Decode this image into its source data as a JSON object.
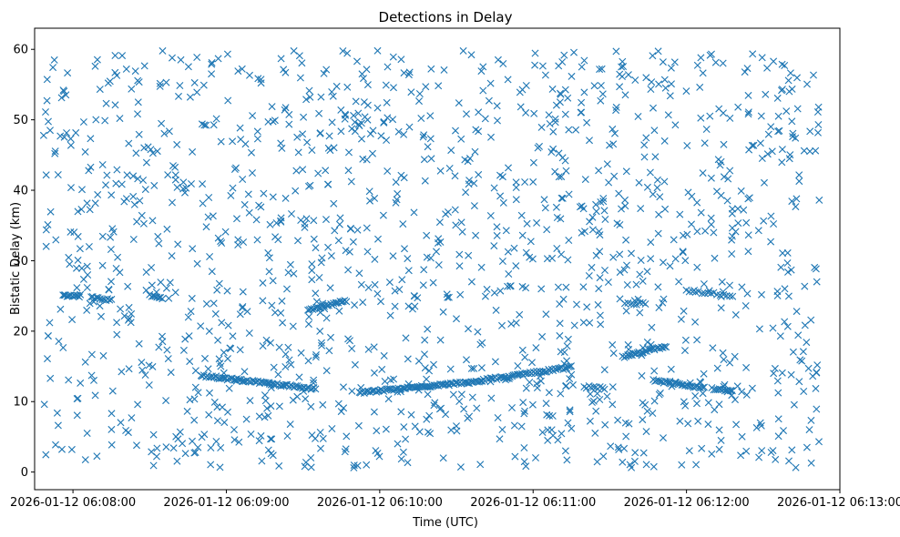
{
  "chart_data": {
    "type": "scatter",
    "title": "Detections in Delay",
    "xlabel": "Time (UTC)",
    "ylabel": "Bistatic Delay (km)",
    "x_axis_type": "time",
    "x_range": [
      "2026-01-12 06:07:45",
      "2026-01-12 06:13:00"
    ],
    "ylim": [
      -2.5,
      63
    ],
    "x_ticks": [
      "2026-01-12 06:08:00",
      "2026-01-12 06:09:00",
      "2026-01-12 06:10:00",
      "2026-01-12 06:11:00",
      "2026-01-12 06:12:00",
      "2026-01-12 06:13:00"
    ],
    "y_ticks": [
      0,
      10,
      20,
      30,
      40,
      50,
      60
    ],
    "grid": false,
    "marker": "x",
    "color": "#1f77b4",
    "data_span": [
      "2026-01-12 06:07:48",
      "2026-01-12 06:12:52"
    ],
    "clutter": {
      "count": 1450,
      "y_range": [
        0.5,
        59.8
      ]
    },
    "tracks": [
      {
        "start": "2026-01-12 06:07:56",
        "end": "2026-01-12 06:08:03",
        "y_start": 25.0,
        "y_end": 25.0,
        "count": 14
      },
      {
        "start": "2026-01-12 06:08:07",
        "end": "2026-01-12 06:08:15",
        "y_start": 24.8,
        "y_end": 24.4,
        "count": 12
      },
      {
        "start": "2026-01-12 06:08:30",
        "end": "2026-01-12 06:08:35",
        "y_start": 25.1,
        "y_end": 24.7,
        "count": 8
      },
      {
        "start": "2026-01-12 06:08:50",
        "end": "2026-01-12 06:09:35",
        "y_start": 13.7,
        "y_end": 11.8,
        "count": 70
      },
      {
        "start": "2026-01-12 06:09:32",
        "end": "2026-01-12 06:09:47",
        "y_start": 23.0,
        "y_end": 24.3,
        "count": 25
      },
      {
        "start": "2026-01-12 06:09:52",
        "end": "2026-01-12 06:10:40",
        "y_start": 11.3,
        "y_end": 12.9,
        "count": 80
      },
      {
        "start": "2026-01-12 06:10:40",
        "end": "2026-01-12 06:11:15",
        "y_start": 13.0,
        "y_end": 14.9,
        "count": 55
      },
      {
        "start": "2026-01-12 06:11:20",
        "end": "2026-01-12 06:11:28",
        "y_start": 12.1,
        "y_end": 11.9,
        "count": 10
      },
      {
        "start": "2026-01-12 06:11:35",
        "end": "2026-01-12 06:11:52",
        "y_start": 16.3,
        "y_end": 17.9,
        "count": 28
      },
      {
        "start": "2026-01-12 06:11:47",
        "end": "2026-01-12 06:12:07",
        "y_start": 13.0,
        "y_end": 11.9,
        "count": 30
      },
      {
        "start": "2026-01-12 06:12:10",
        "end": "2026-01-12 06:12:18",
        "y_start": 11.8,
        "y_end": 11.6,
        "count": 12
      },
      {
        "start": "2026-01-12 06:12:00",
        "end": "2026-01-12 06:12:18",
        "y_start": 25.7,
        "y_end": 25.1,
        "count": 16
      },
      {
        "start": "2026-01-12 06:11:36",
        "end": "2026-01-12 06:11:44",
        "y_start": 23.8,
        "y_end": 24.0,
        "count": 8
      }
    ]
  }
}
